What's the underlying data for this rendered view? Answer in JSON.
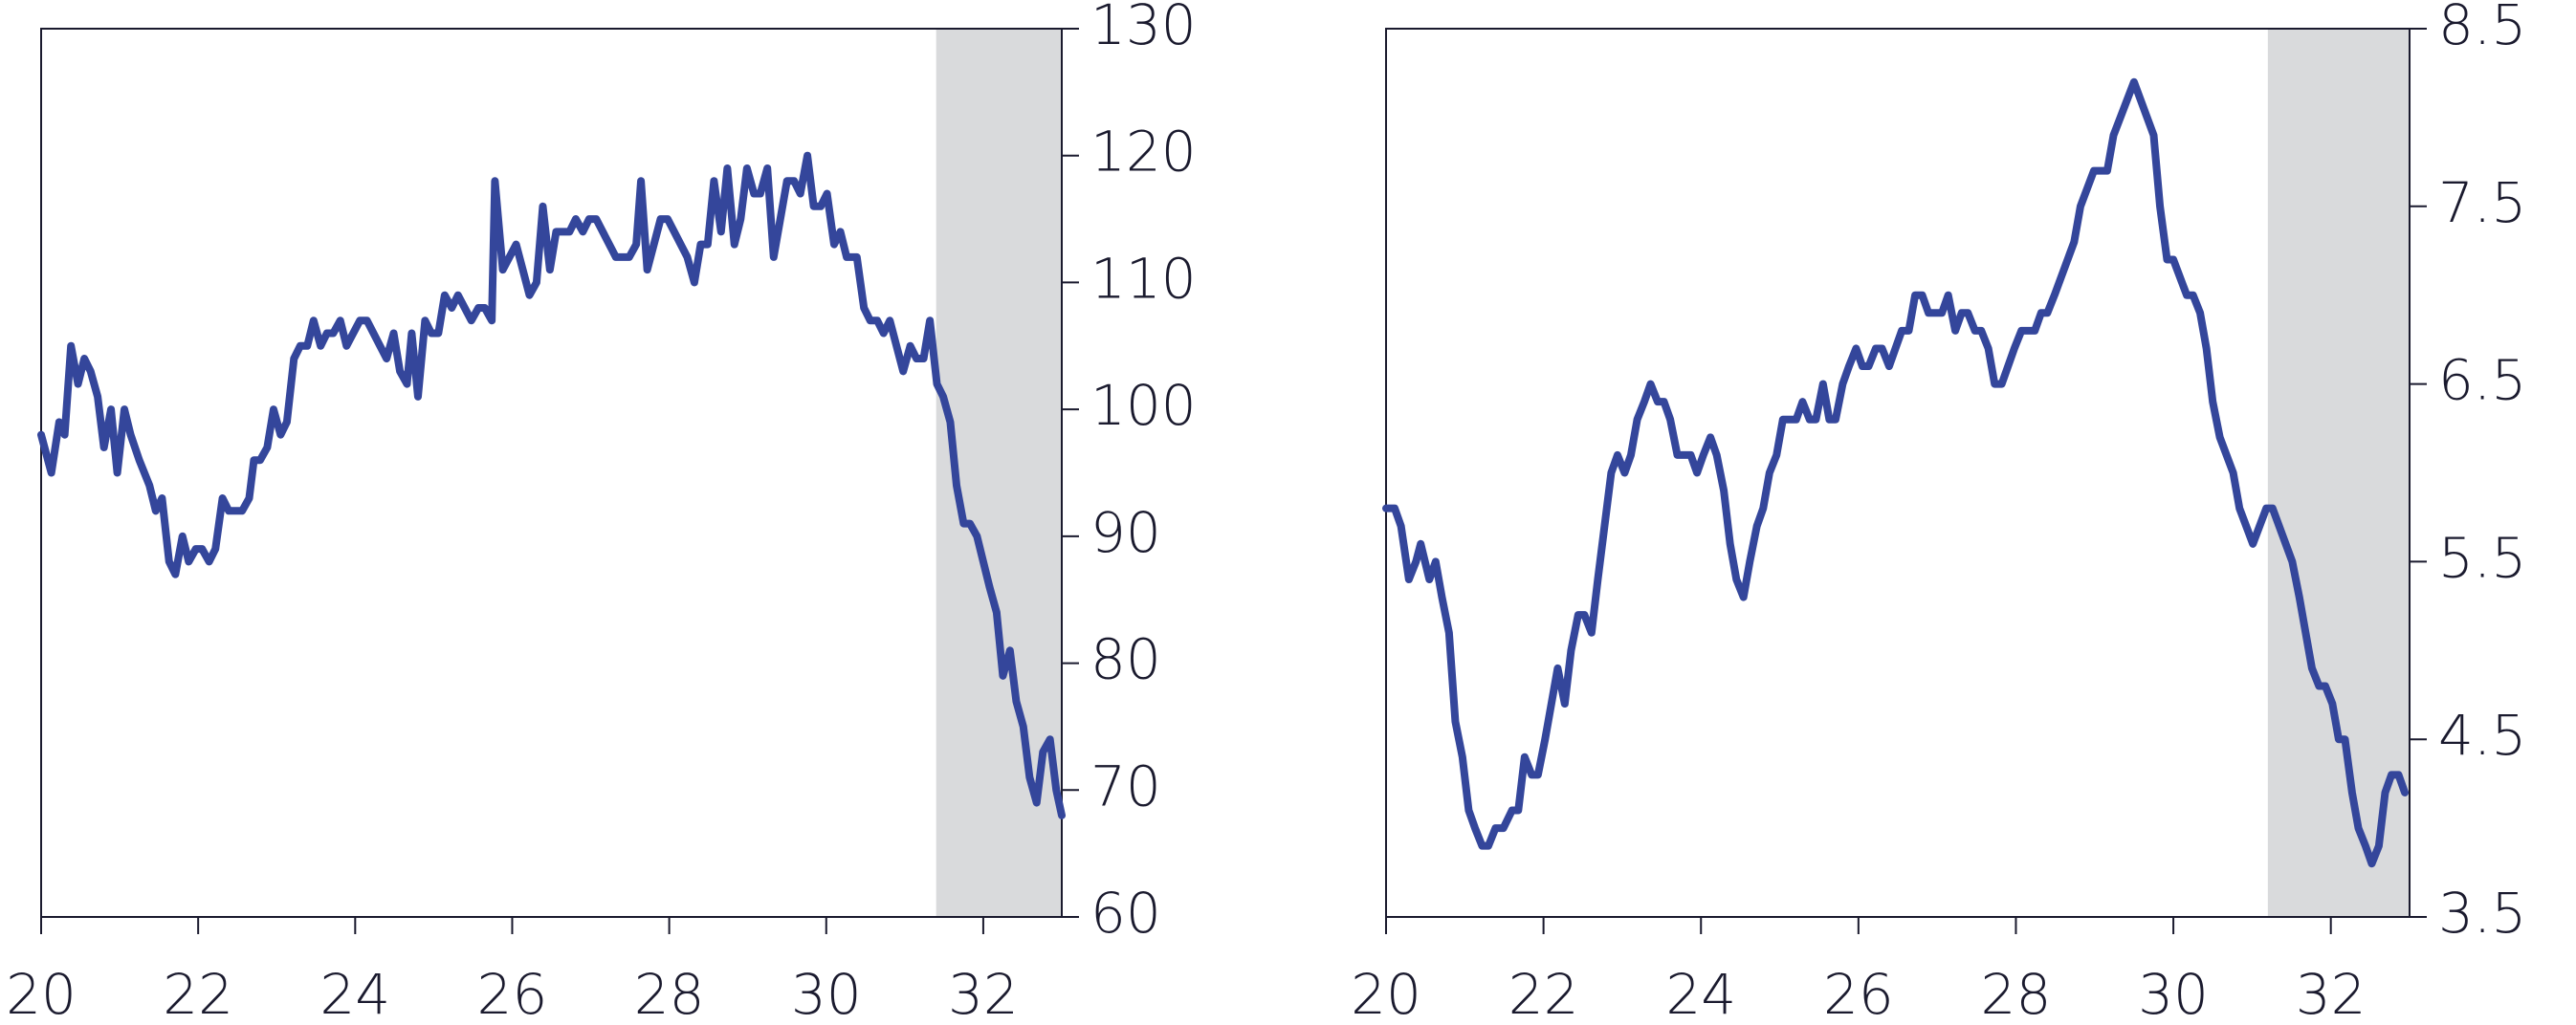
{
  "chart_data": [
    {
      "type": "line",
      "xlim": [
        20,
        33
      ],
      "xticks": [
        20,
        22,
        24,
        26,
        28,
        30,
        32
      ],
      "ylim": [
        60,
        130
      ],
      "yticks": [
        60,
        70,
        80,
        90,
        100,
        110,
        120,
        130
      ],
      "shaded_xrange": [
        31.4,
        33
      ],
      "shade_color": "#d9dadc",
      "series": [
        {
          "color": "#34469b",
          "x": [
            20,
            20.13,
            20.23,
            20.3,
            20.38,
            20.47,
            20.55,
            20.63,
            20.72,
            20.8,
            20.89,
            20.97,
            21.06,
            21.14,
            21.25,
            21.38,
            21.46,
            21.54,
            21.63,
            21.71,
            21.8,
            21.88,
            21.97,
            22.05,
            22.14,
            22.22,
            22.31,
            22.39,
            22.56,
            22.65,
            22.71,
            22.79,
            22.88,
            22.96,
            23.05,
            23.13,
            23.22,
            23.3,
            23.39,
            23.47,
            23.56,
            23.64,
            23.72,
            23.81,
            23.89,
            24.06,
            24.15,
            24.4,
            24.49,
            24.57,
            24.66,
            24.72,
            24.8,
            24.89,
            24.97,
            25.06,
            25.14,
            25.23,
            25.31,
            25.48,
            25.57,
            25.65,
            25.74,
            25.78,
            25.88,
            26.05,
            26.22,
            26.31,
            26.39,
            26.48,
            26.56,
            26.73,
            26.81,
            26.9,
            26.98,
            27.07,
            27.32,
            27.49,
            27.58,
            27.64,
            27.72,
            27.89,
            27.98,
            28.23,
            28.32,
            28.4,
            28.49,
            28.57,
            28.66,
            28.74,
            28.83,
            28.91,
            28.99,
            29.08,
            29.16,
            29.25,
            29.33,
            29.5,
            29.59,
            29.67,
            29.76,
            29.84,
            29.93,
            30.01,
            30.1,
            30.18,
            30.26,
            30.39,
            30.48,
            30.56,
            30.65,
            30.73,
            30.81,
            30.98,
            31.07,
            31.15,
            31.24,
            31.32,
            31.41,
            31.49,
            31.58,
            31.66,
            31.75,
            31.83,
            31.92,
            32,
            32.08,
            32.17,
            32.25,
            32.34,
            32.42,
            32.51,
            32.59,
            32.68,
            32.76,
            32.85,
            32.93,
            33
          ],
          "values": [
            98,
            95,
            99,
            98,
            105,
            102,
            104,
            103,
            101,
            97,
            100,
            95,
            100,
            98,
            96,
            94,
            92,
            93,
            88,
            87,
            90,
            88,
            89,
            89,
            88,
            89,
            93,
            92,
            92,
            93,
            96,
            96,
            97,
            100,
            98,
            99,
            104,
            105,
            105,
            107,
            105,
            106,
            106,
            107,
            105,
            107,
            107,
            104,
            106,
            103,
            102,
            106,
            101,
            107,
            106,
            106,
            109,
            108,
            109,
            107,
            108,
            108,
            107,
            118,
            111,
            113,
            109,
            110,
            116,
            111,
            114,
            114,
            115,
            114,
            115,
            115,
            112,
            112,
            113,
            118,
            111,
            115,
            115,
            112,
            110,
            113,
            113,
            118,
            114,
            119,
            113,
            115,
            119,
            117,
            117,
            119,
            112,
            118,
            118,
            117,
            120,
            116,
            116,
            117,
            113,
            114,
            112,
            112,
            108,
            107,
            107,
            106,
            107,
            103,
            105,
            104,
            104,
            107,
            102,
            101,
            99,
            94,
            91,
            91,
            90,
            88,
            86,
            84,
            79,
            81,
            77,
            75,
            71,
            69,
            73,
            74,
            70,
            68
          ]
        }
      ]
    },
    {
      "type": "line",
      "xlim": [
        20,
        33
      ],
      "xticks": [
        20,
        22,
        24,
        26,
        28,
        30,
        32
      ],
      "ylim": [
        3.5,
        8.5
      ],
      "yticks": [
        3.5,
        4.5,
        5.5,
        6.5,
        7.5,
        8.5
      ],
      "shaded_xrange": [
        31.2,
        33
      ],
      "shade_color": "#d9dadc",
      "series": [
        {
          "color": "#34469b",
          "x": [
            20,
            20.11,
            20.19,
            20.29,
            20.38,
            20.44,
            20.55,
            20.63,
            20.71,
            20.8,
            20.88,
            20.97,
            21.05,
            21.13,
            21.22,
            21.3,
            21.39,
            21.49,
            21.6,
            21.68,
            21.76,
            21.85,
            21.93,
            22.02,
            22.18,
            22.27,
            22.35,
            22.44,
            22.52,
            22.61,
            22.69,
            22.86,
            22.94,
            23.03,
            23.11,
            23.19,
            23.28,
            23.36,
            23.45,
            23.53,
            23.61,
            23.7,
            23.87,
            23.95,
            24.03,
            24.12,
            24.2,
            24.29,
            24.37,
            24.45,
            24.54,
            24.62,
            24.71,
            24.79,
            24.87,
            24.96,
            25.04,
            25.21,
            25.29,
            25.38,
            25.46,
            25.55,
            25.63,
            25.71,
            25.8,
            25.88,
            25.97,
            26.05,
            26.13,
            26.22,
            26.3,
            26.39,
            26.47,
            26.55,
            26.64,
            26.72,
            26.81,
            26.89,
            27.06,
            27.14,
            27.23,
            27.31,
            27.39,
            27.48,
            27.56,
            27.65,
            27.73,
            27.82,
            27.98,
            28.07,
            28.24,
            28.32,
            28.4,
            28.49,
            28.74,
            28.82,
            28.99,
            29.16,
            29.24,
            29.5,
            29.75,
            29.83,
            29.92,
            30,
            30.17,
            30.25,
            30.34,
            30.42,
            30.5,
            30.59,
            30.76,
            30.84,
            31.01,
            31.18,
            31.26,
            31.51,
            31.6,
            31.76,
            31.85,
            31.93,
            32.02,
            32.1,
            32.18,
            32.27,
            32.35,
            32.44,
            32.52,
            32.61,
            32.69,
            32.77,
            32.86,
            32.94
          ],
          "values": [
            5.8,
            5.8,
            5.7,
            5.4,
            5.5,
            5.6,
            5.4,
            5.5,
            5.3,
            5.1,
            4.6,
            4.4,
            4.1,
            4.0,
            3.9,
            3.9,
            4.0,
            4.0,
            4.1,
            4.1,
            4.4,
            4.3,
            4.3,
            4.5,
            4.9,
            4.7,
            5.0,
            5.2,
            5.2,
            5.1,
            5.4,
            6.0,
            6.1,
            6.0,
            6.1,
            6.3,
            6.4,
            6.5,
            6.4,
            6.4,
            6.3,
            6.1,
            6.1,
            6.0,
            6.1,
            6.2,
            6.1,
            5.9,
            5.6,
            5.4,
            5.3,
            5.5,
            5.7,
            5.8,
            6.0,
            6.1,
            6.3,
            6.3,
            6.4,
            6.3,
            6.3,
            6.5,
            6.3,
            6.3,
            6.5,
            6.6,
            6.7,
            6.6,
            6.6,
            6.7,
            6.7,
            6.6,
            6.7,
            6.8,
            6.8,
            7.0,
            7.0,
            6.9,
            6.9,
            7.0,
            6.8,
            6.9,
            6.9,
            6.8,
            6.8,
            6.7,
            6.5,
            6.5,
            6.7,
            6.8,
            6.8,
            6.9,
            6.9,
            7.0,
            7.3,
            7.5,
            7.7,
            7.7,
            7.9,
            8.2,
            7.9,
            7.5,
            7.2,
            7.2,
            7.0,
            7.0,
            6.9,
            6.7,
            6.4,
            6.2,
            6.0,
            5.8,
            5.6,
            5.8,
            5.8,
            5.5,
            5.3,
            4.9,
            4.8,
            4.8,
            4.7,
            4.5,
            4.5,
            4.2,
            4.0,
            3.9,
            3.8,
            3.9,
            4.2,
            4.3,
            4.3,
            4.2
          ]
        }
      ]
    }
  ]
}
